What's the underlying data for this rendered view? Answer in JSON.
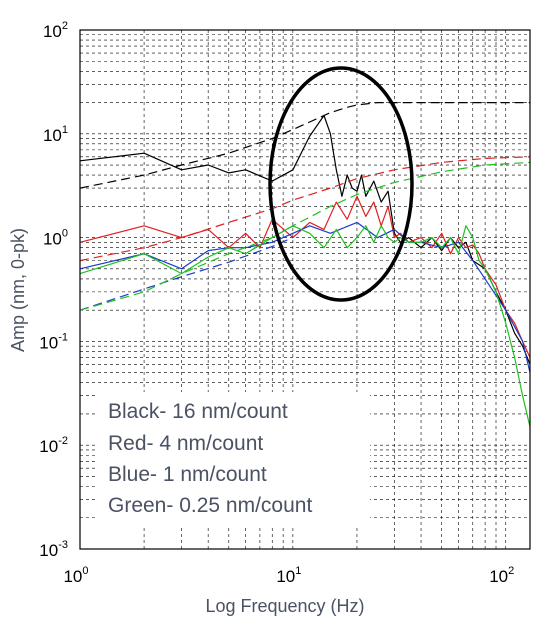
{
  "chart_data": {
    "type": "line",
    "title": "",
    "xlabel": "Log Frequency (Hz)",
    "ylabel": "Amp (nm, 0-pk)",
    "xscale": "log",
    "yscale": "log",
    "xlim": [
      1,
      130
    ],
    "ylim": [
      0.001,
      100
    ],
    "grid": true,
    "grid_style": "dashed",
    "x_ticks": [
      {
        "base": "10",
        "exp": "0",
        "value": 1
      },
      {
        "base": "10",
        "exp": "1",
        "value": 10
      },
      {
        "base": "10",
        "exp": "2",
        "value": 100
      }
    ],
    "y_ticks": [
      {
        "base": "10",
        "exp": "-3",
        "value": 0.001
      },
      {
        "base": "10",
        "exp": "-2",
        "value": 0.01
      },
      {
        "base": "10",
        "exp": "-1",
        "value": 0.1
      },
      {
        "base": "10",
        "exp": "0",
        "value": 1
      },
      {
        "base": "10",
        "exp": "1",
        "value": 10
      },
      {
        "base": "10",
        "exp": "2",
        "value": 100
      }
    ],
    "legend_placement": "bottom-left",
    "legend": [
      "Black- 16 nm/count",
      "Red- 4 nm/count",
      "Blue- 1 nm/count",
      "Green- 0.25 nm/count"
    ],
    "annotation": {
      "type": "ellipse",
      "center": [
        17,
        1.5
      ],
      "note": "circled region around 10-30 Hz"
    },
    "series": [
      {
        "color": "#000000",
        "style": "solid",
        "x": [
          1,
          2,
          3,
          4,
          5,
          6,
          8,
          10,
          12,
          14,
          15,
          16,
          17,
          18,
          19,
          20,
          21,
          22,
          24,
          26,
          28,
          30,
          32,
          35,
          40,
          45,
          50,
          55,
          60,
          65,
          70,
          80,
          90,
          100,
          110,
          120,
          130
        ],
        "y": [
          5.5,
          6.5,
          4.5,
          5,
          4.2,
          4.5,
          3.5,
          4.5,
          9.5,
          15,
          10,
          4.5,
          2.5,
          4,
          3,
          2.8,
          4,
          2.5,
          3.5,
          2.2,
          2.8,
          1.1,
          0.9,
          1.0,
          0.8,
          1.0,
          0.75,
          1.0,
          0.8,
          0.9,
          0.6,
          0.5,
          0.3,
          0.2,
          0.12,
          0.09,
          0.06
        ]
      },
      {
        "color": "#000000",
        "style": "dashed",
        "x": [
          1,
          2,
          3,
          5,
          8,
          10,
          12,
          15,
          18,
          20,
          25,
          30,
          40,
          60,
          100,
          130
        ],
        "y": [
          3.0,
          4.0,
          5.0,
          6.5,
          9,
          11,
          13,
          16,
          18,
          19,
          20,
          20,
          20,
          20,
          20,
          20
        ]
      },
      {
        "color": "#e02020",
        "style": "solid",
        "x": [
          1,
          2,
          3,
          4,
          5,
          6,
          7,
          8,
          10,
          12,
          14,
          16,
          18,
          20,
          22,
          24,
          26,
          28,
          30,
          32,
          35,
          40,
          45,
          50,
          55,
          60,
          65,
          70,
          75,
          80,
          90,
          100,
          110,
          120,
          130
        ],
        "y": [
          0.9,
          1.3,
          1.0,
          1.2,
          0.8,
          1.1,
          0.8,
          1.5,
          1.0,
          1.4,
          1.2,
          2.2,
          1.5,
          2.5,
          1.6,
          2.2,
          1.3,
          2.0,
          1.0,
          1.1,
          0.9,
          1.0,
          0.8,
          1.1,
          0.7,
          1.0,
          0.8,
          0.85,
          0.7,
          0.5,
          0.35,
          0.2,
          0.15,
          0.1,
          0.07
        ]
      },
      {
        "color": "#e02020",
        "style": "dashed",
        "x": [
          1,
          2,
          3,
          5,
          8,
          10,
          15,
          20,
          30,
          50,
          80,
          130
        ],
        "y": [
          0.6,
          0.8,
          1.0,
          1.4,
          1.9,
          2.3,
          3.0,
          3.7,
          4.5,
          5.3,
          5.8,
          6.0
        ]
      },
      {
        "color": "#1a3cc8",
        "style": "solid",
        "x": [
          1,
          2,
          3,
          4,
          5,
          6,
          8,
          10,
          12,
          15,
          20,
          25,
          30,
          35,
          40,
          50,
          60,
          70,
          80,
          100,
          120,
          130
        ],
        "y": [
          0.5,
          0.7,
          0.5,
          0.75,
          0.8,
          0.8,
          0.9,
          1.1,
          1.3,
          1.1,
          1.4,
          1.0,
          1.2,
          0.9,
          0.9,
          0.8,
          0.9,
          0.6,
          0.4,
          0.2,
          0.1,
          0.05
        ]
      },
      {
        "color": "#1a3cc8",
        "style": "dashed",
        "x": [
          1,
          2,
          3,
          5,
          8,
          10
        ],
        "y": [
          0.2,
          0.32,
          0.42,
          0.58,
          0.82,
          1.0
        ]
      },
      {
        "color": "#20c020",
        "style": "solid",
        "x": [
          1,
          2,
          3,
          4,
          5,
          6,
          8,
          10,
          12,
          14,
          16,
          18,
          20,
          22,
          24,
          26,
          28,
          30,
          32,
          35,
          40,
          45,
          50,
          55,
          60,
          65,
          70,
          75,
          80,
          90,
          100,
          110,
          120,
          130
        ],
        "y": [
          0.45,
          0.7,
          0.45,
          0.65,
          0.8,
          0.7,
          1.0,
          1.3,
          1.1,
          0.8,
          1.2,
          0.8,
          1.0,
          1.3,
          0.9,
          1.3,
          1.0,
          0.9,
          1.0,
          0.9,
          0.9,
          1.0,
          0.8,
          1.0,
          0.7,
          1.3,
          1.0,
          0.6,
          0.5,
          0.3,
          0.15,
          0.07,
          0.03,
          0.015
        ]
      },
      {
        "color": "#20c020",
        "style": "dashed",
        "x": [
          1,
          2,
          3,
          5,
          8,
          10,
          15,
          20,
          30,
          50,
          80,
          130
        ],
        "y": [
          0.2,
          0.3,
          0.45,
          0.7,
          1.0,
          1.3,
          2.0,
          2.6,
          3.4,
          4.3,
          5.0,
          5.3
        ]
      }
    ]
  }
}
